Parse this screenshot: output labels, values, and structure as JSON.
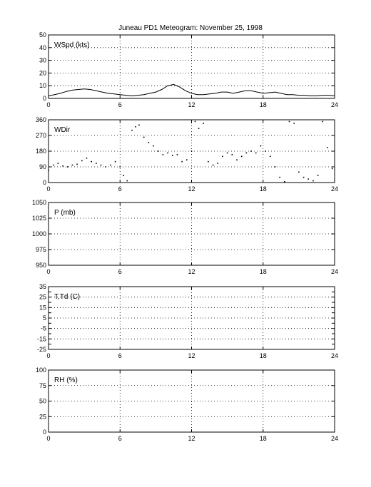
{
  "title": "Juneau PD1 Meteogram:  November 25, 1998",
  "chart_data": [
    {
      "type": "line",
      "label": "WSpd (kts)",
      "xlim": [
        0,
        24
      ],
      "ylim": [
        0,
        50
      ],
      "xticks": [
        0,
        6,
        12,
        18,
        24
      ],
      "yticks": [
        0,
        10,
        20,
        30,
        40,
        50
      ],
      "grid": true,
      "series": [
        {
          "x": [
            0,
            0.5,
            1,
            1.5,
            2,
            2.5,
            3,
            3.5,
            4,
            4.5,
            5,
            5.5,
            6,
            6.5,
            7,
            7.5,
            8,
            8.5,
            9,
            9.5,
            10,
            10.5,
            11,
            11.5,
            12,
            12.5,
            13,
            13.5,
            14,
            14.5,
            15,
            15.5,
            16,
            16.5,
            17,
            17.5,
            18,
            18.5,
            19,
            19.5,
            20,
            20.5,
            21,
            21.5,
            22,
            22.5,
            23,
            23.5,
            24
          ],
          "y": [
            2,
            3,
            4,
            5.5,
            6.5,
            7,
            7.5,
            7,
            6,
            5,
            4,
            3.5,
            3,
            2.5,
            2,
            2.5,
            3,
            4,
            5,
            7,
            10,
            11,
            9,
            6,
            4,
            3,
            3,
            3.5,
            4,
            5,
            5,
            4,
            5,
            6,
            6,
            5,
            4,
            4.5,
            5,
            4,
            3,
            3,
            2.5,
            2.5,
            2,
            2,
            2.5,
            2.5,
            2
          ]
        }
      ]
    },
    {
      "type": "scatter",
      "label": "WDir",
      "xlim": [
        0,
        24
      ],
      "ylim": [
        0,
        360
      ],
      "xticks": [
        0,
        6,
        12,
        18,
        24
      ],
      "yticks": [
        0,
        90,
        180,
        270,
        360
      ],
      "grid": true,
      "series": [
        {
          "x": [
            0,
            0.4,
            0.8,
            1.2,
            1.6,
            2,
            2.4,
            2.8,
            3.2,
            3.6,
            4,
            4.4,
            4.8,
            5.2,
            5.6,
            6,
            6.3,
            6.6,
            7,
            7.3,
            7.6,
            8,
            8.4,
            8.8,
            9.2,
            9.6,
            10,
            10.4,
            10.8,
            11.2,
            11.6,
            12,
            12.3,
            12.6,
            13,
            13.4,
            13.8,
            14.2,
            14.6,
            15,
            15.4,
            15.8,
            16.2,
            16.6,
            17,
            17.4,
            17.8,
            18.2,
            18.6,
            19,
            19.4,
            19.8,
            20.2,
            20.6,
            21,
            21.4,
            21.8,
            22.2,
            22.6,
            23,
            23.4,
            23.8
          ],
          "y": [
            70,
            100,
            110,
            95,
            90,
            100,
            105,
            125,
            140,
            120,
            110,
            100,
            90,
            100,
            120,
            90,
            40,
            10,
            300,
            320,
            330,
            260,
            230,
            210,
            180,
            160,
            170,
            155,
            160,
            120,
            130,
            180,
            350,
            310,
            340,
            120,
            100,
            110,
            150,
            170,
            160,
            130,
            150,
            170,
            180,
            170,
            210,
            180,
            150,
            90,
            30,
            5,
            350,
            340,
            60,
            30,
            20,
            10,
            40,
            350,
            200,
            80
          ]
        }
      ]
    },
    {
      "type": "line",
      "label": "P (mb)",
      "xlim": [
        0,
        24
      ],
      "ylim": [
        950,
        1050
      ],
      "xticks": [
        0,
        6,
        12,
        18,
        24
      ],
      "yticks": [
        950,
        975,
        1000,
        1025,
        1050
      ],
      "grid": true,
      "series": []
    },
    {
      "type": "line",
      "label": "T,Td (C)",
      "xlim": [
        0,
        24
      ],
      "ylim": [
        -25,
        35
      ],
      "xticks": [
        0,
        6,
        12,
        18,
        24
      ],
      "yticks": [
        -25,
        -15,
        -5,
        5,
        15,
        25,
        35
      ],
      "minor_yticks": [
        -20,
        -10,
        0,
        10,
        20,
        30
      ],
      "grid": true,
      "series": []
    },
    {
      "type": "line",
      "label": "RH (%)",
      "xlim": [
        0,
        24
      ],
      "ylim": [
        0,
        100
      ],
      "xticks": [
        0,
        6,
        12,
        18,
        24
      ],
      "yticks": [
        0,
        25,
        50,
        75,
        100
      ],
      "grid": true,
      "series": []
    }
  ]
}
